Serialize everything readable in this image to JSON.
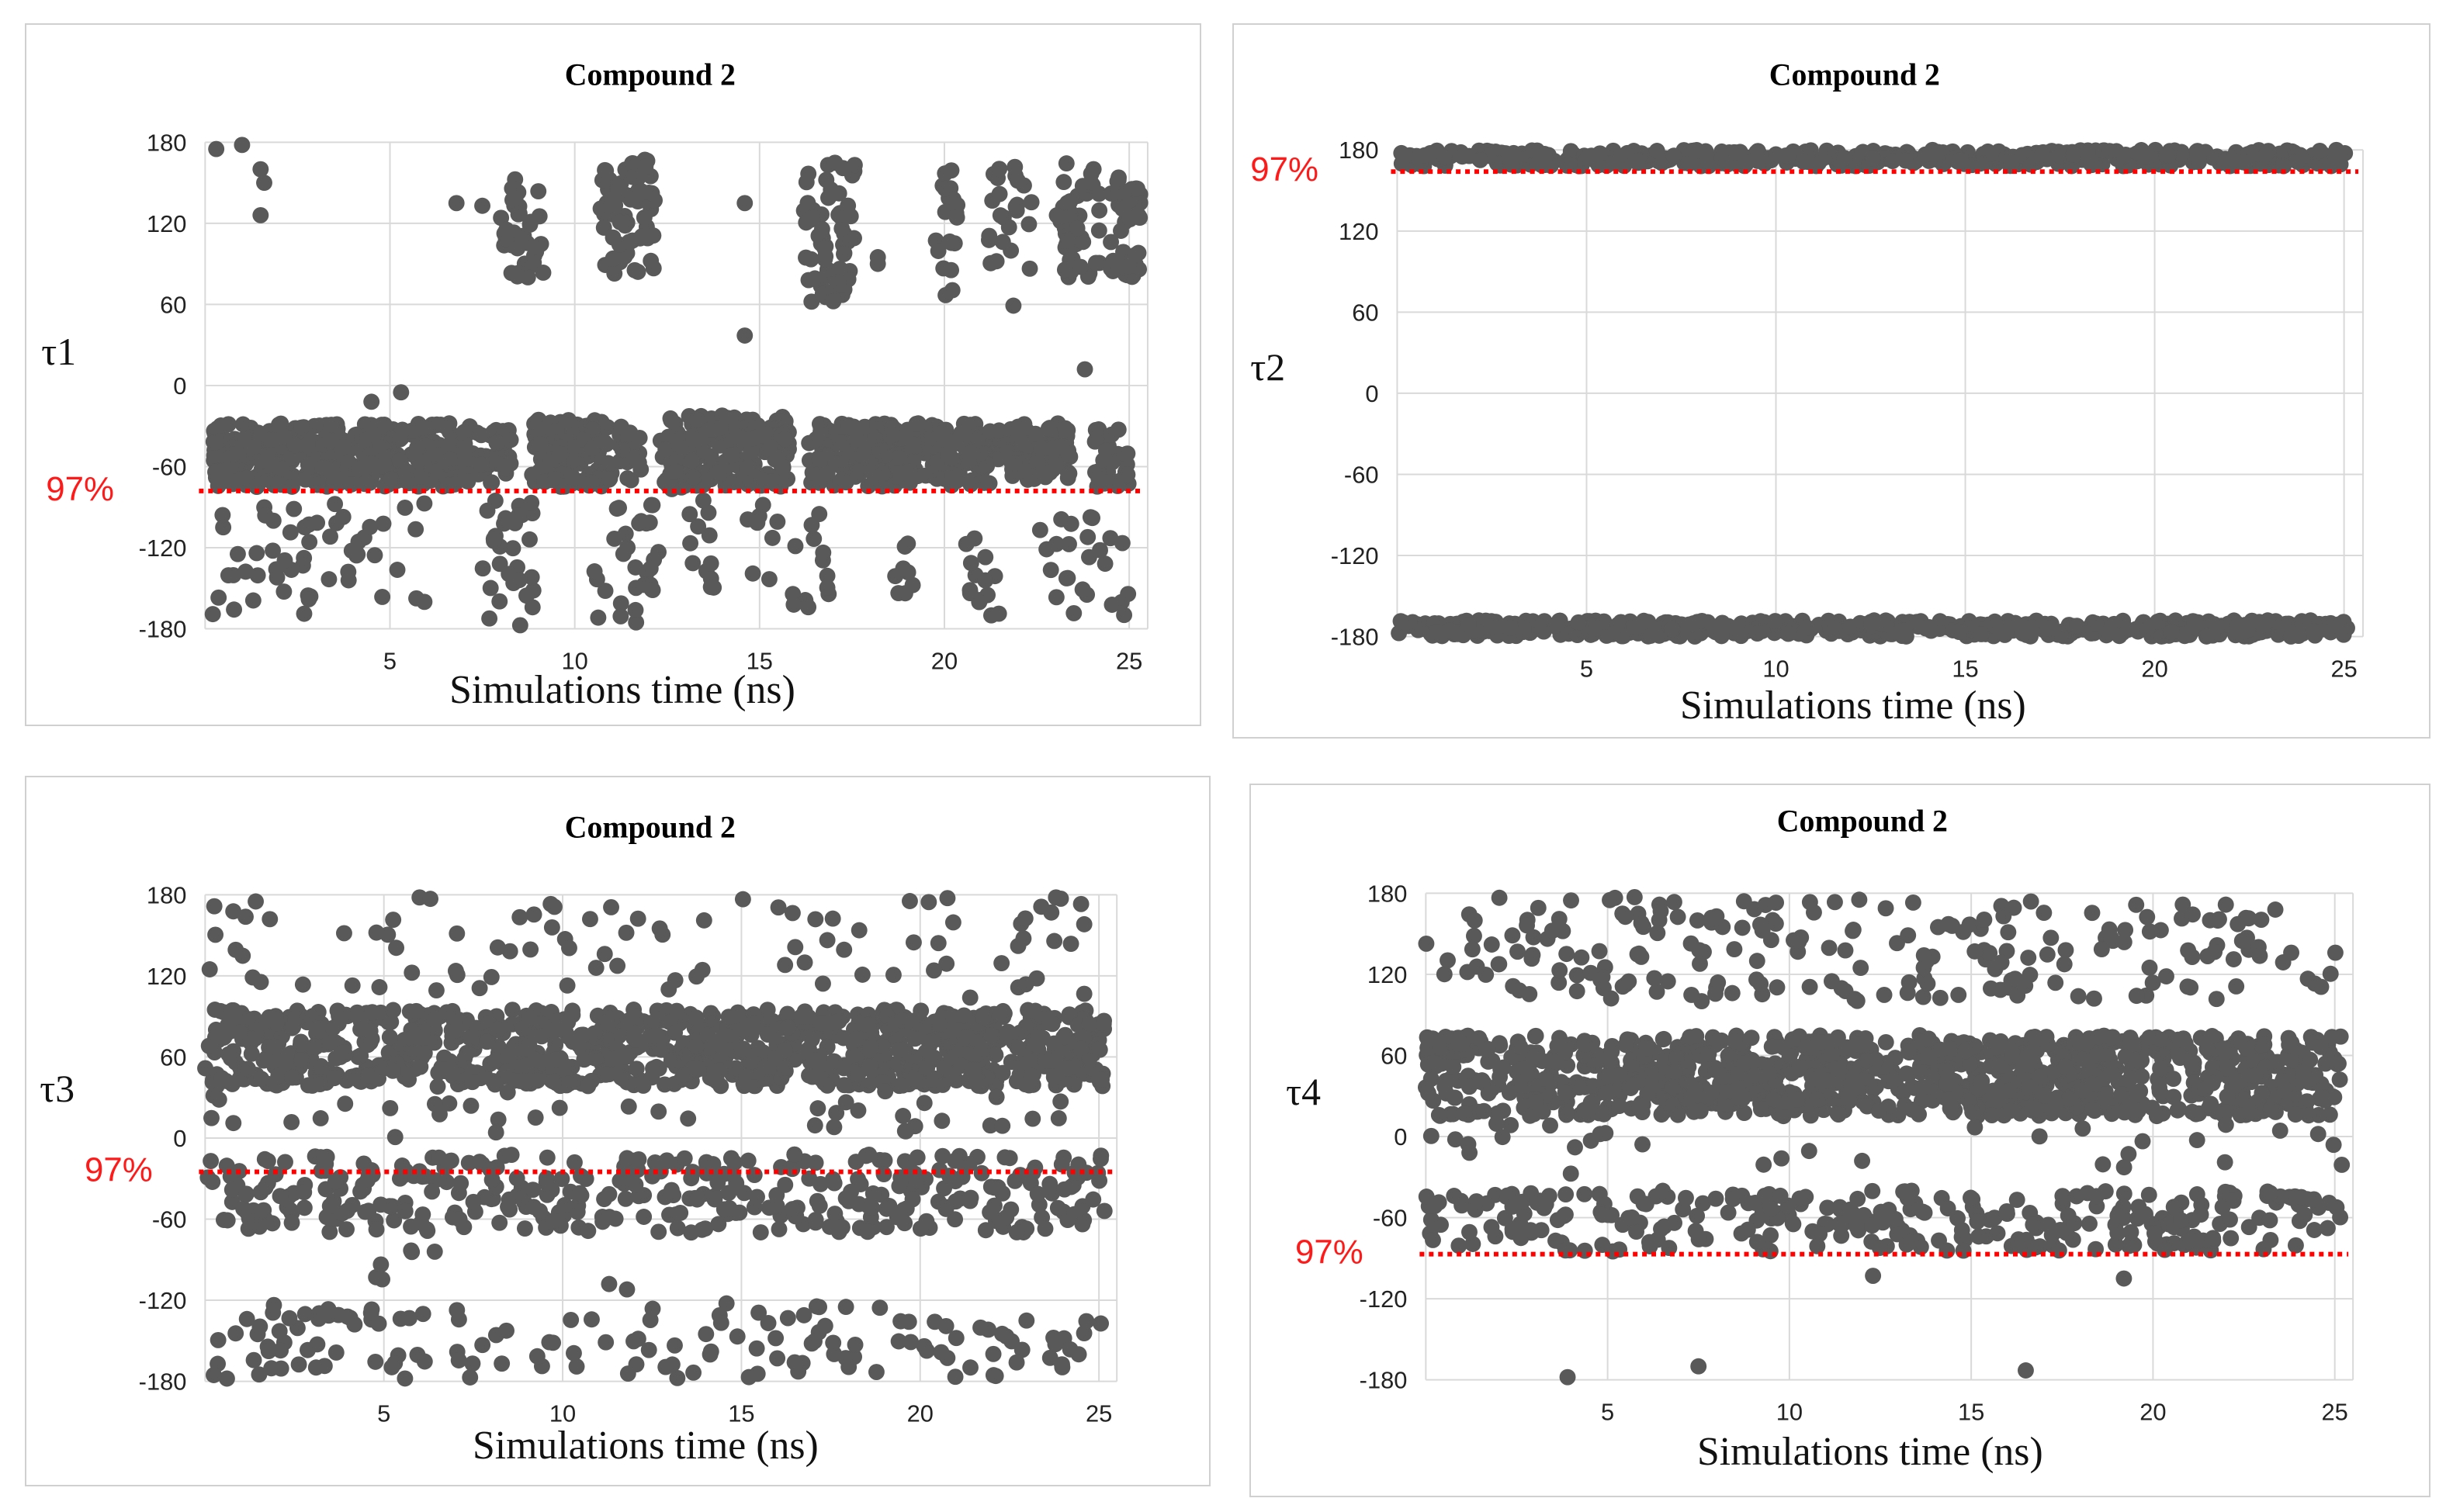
{
  "colors": {
    "marker": "#595959",
    "threshold": "#ff0000",
    "grid": "#d9d9d9"
  },
  "chart_data": [
    {
      "type": "scatter",
      "title": "Compound 2",
      "xlabel": "Simulations time (ns)",
      "ylabel": "τ1",
      "xlim": [
        0,
        25.5
      ],
      "ylim": [
        -180,
        180
      ],
      "xticks": [
        "5",
        "10",
        "15",
        "20",
        "25"
      ],
      "yticks": [
        "180",
        "120",
        "60",
        "0",
        "-60",
        "-120",
        "-180"
      ],
      "threshold": {
        "label": "97%",
        "y": -78
      },
      "series": [
        {
          "name": "τ1",
          "dense_bands": [
            {
              "x": [
                0.2,
                6.9
              ],
              "y": [
                -75,
                -28
              ],
              "count": 380
            },
            {
              "x": [
                7.0,
                8.3
              ],
              "y": [
                -72,
                -30
              ],
              "count": 50
            },
            {
              "x": [
                8.8,
                11.0
              ],
              "y": [
                -75,
                -25
              ],
              "count": 120
            },
            {
              "x": [
                11.2,
                11.8
              ],
              "y": [
                -72,
                -30
              ],
              "count": 20
            },
            {
              "x": [
                12.3,
                15.8
              ],
              "y": [
                -78,
                -22
              ],
              "count": 200
            },
            {
              "x": [
                16.3,
                21.5
              ],
              "y": [
                -75,
                -28
              ],
              "count": 260
            },
            {
              "x": [
                21.7,
                23.4
              ],
              "y": [
                -70,
                -28
              ],
              "count": 80
            },
            {
              "x": [
                24.0,
                25.0
              ],
              "y": [
                -75,
                -32
              ],
              "count": 35
            }
          ],
          "clusters": [
            {
              "x": [
                0.0,
                3.0
              ],
              "y": [
                -175,
                -80
              ],
              "count": 25
            },
            {
              "x": [
                2.0,
                6.0
              ],
              "y": [
                -170,
                -85
              ],
              "count": 30
            },
            {
              "x": [
                7.5,
                9.0
              ],
              "y": [
                -178,
                -85
              ],
              "count": 30
            },
            {
              "x": [
                10.5,
                12.3
              ],
              "y": [
                -178,
                -85
              ],
              "count": 30
            },
            {
              "x": [
                12.8,
                15.5
              ],
              "y": [
                -150,
                -85
              ],
              "count": 20
            },
            {
              "x": [
                15.8,
                17.0
              ],
              "y": [
                -170,
                -90
              ],
              "count": 15
            },
            {
              "x": [
                18.5,
                19.5
              ],
              "y": [
                -155,
                -115
              ],
              "count": 8
            },
            {
              "x": [
                20.5,
                21.5
              ],
              "y": [
                -172,
                -110
              ],
              "count": 15
            },
            {
              "x": [
                22.5,
                25.0
              ],
              "y": [
                -172,
                -80
              ],
              "count": 25
            },
            {
              "x": [
                8.0,
                9.2
              ],
              "y": [
                75,
                160
              ],
              "count": 35
            },
            {
              "x": [
                10.7,
                12.2
              ],
              "y": [
                80,
                172
              ],
              "count": 70
            },
            {
              "x": [
                16.2,
                17.6
              ],
              "y": [
                60,
                165
              ],
              "count": 65
            },
            {
              "x": [
                19.7,
                20.4
              ],
              "y": [
                62,
                168
              ],
              "count": 20
            },
            {
              "x": [
                21.2,
                22.4
              ],
              "y": [
                50,
                168
              ],
              "count": 25
            },
            {
              "x": [
                23.0,
                24.2
              ],
              "y": [
                80,
                165
              ],
              "count": 45
            },
            {
              "x": [
                24.5,
                25.3
              ],
              "y": [
                80,
                155
              ],
              "count": 40
            }
          ],
          "points": [
            {
              "x": 0.3,
              "y": 175
            },
            {
              "x": 1.0,
              "y": 178
            },
            {
              "x": 1.5,
              "y": 160
            },
            {
              "x": 1.6,
              "y": 150
            },
            {
              "x": 1.5,
              "y": 126
            },
            {
              "x": 6.8,
              "y": 135
            },
            {
              "x": 7.5,
              "y": 133
            },
            {
              "x": 14.6,
              "y": 135
            },
            {
              "x": 14.6,
              "y": 37
            },
            {
              "x": 18.2,
              "y": 90
            },
            {
              "x": 18.2,
              "y": 95
            },
            {
              "x": 23.8,
              "y": 12
            },
            {
              "x": 5.3,
              "y": -5
            },
            {
              "x": 4.5,
              "y": -12
            }
          ]
        }
      ]
    },
    {
      "type": "scatter",
      "title": "Compound 2",
      "xlabel": "Simulations time (ns)",
      "ylabel": "τ2",
      "xlim": [
        0,
        25.5
      ],
      "ylim": [
        -180,
        180
      ],
      "xticks": [
        "5",
        "10",
        "15",
        "20",
        "25"
      ],
      "yticks": [
        "180",
        "120",
        "60",
        "0",
        "-60",
        "-120",
        "-180"
      ],
      "threshold": {
        "label": "97%",
        "y": 164
      },
      "series": [
        {
          "name": "τ2",
          "dense_bands": [
            {
              "x": [
                0.0,
                25.1
              ],
              "y": [
                168,
                180
              ],
              "count": 500
            },
            {
              "x": [
                0.0,
                25.1
              ],
              "y": [
                -180,
                -168
              ],
              "count": 500
            }
          ],
          "clusters": [],
          "points": []
        }
      ]
    },
    {
      "type": "scatter",
      "title": "Compound 2",
      "xlabel": "Simulations time (ns)",
      "ylabel": "τ3",
      "xlim": [
        0,
        25.5
      ],
      "ylim": [
        -180,
        180
      ],
      "xticks": [
        "5",
        "10",
        "15",
        "20",
        "25"
      ],
      "yticks": [
        "180",
        "120",
        "60",
        "0",
        "-60",
        "-120",
        "-180"
      ],
      "threshold": {
        "label": "97%",
        "y": -25
      },
      "series": [
        {
          "name": "τ3",
          "dense_bands": [
            {
              "x": [
                0.0,
                25.2
              ],
              "y": [
                38,
                95
              ],
              "count": 1000
            },
            {
              "x": [
                0.0,
                25.2
              ],
              "y": [
                -70,
                -12
              ],
              "count": 380
            }
          ],
          "clusters": [
            {
              "x": [
                0.0,
                25.2
              ],
              "y": [
                100,
                178
              ],
              "count": 90
            },
            {
              "x": [
                0.0,
                25.2
              ],
              "y": [
                -178,
                -120
              ],
              "count": 150
            },
            {
              "x": [
                0.0,
                25.2
              ],
              "y": [
                0,
                35
              ],
              "count": 40
            },
            {
              "x": [
                4.5,
                6.5
              ],
              "y": [
                -115,
                -80
              ],
              "count": 6
            }
          ],
          "points": [
            {
              "x": 6.0,
              "y": 178
            },
            {
              "x": 6.3,
              "y": 177
            },
            {
              "x": 23.8,
              "y": 178
            },
            {
              "x": 11.3,
              "y": -108
            },
            {
              "x": 11.8,
              "y": -112
            }
          ]
        }
      ]
    },
    {
      "type": "scatter",
      "title": "Compound 2",
      "xlabel": "Simulations time (ns)",
      "ylabel": "τ4",
      "xlim": [
        0,
        25.5
      ],
      "ylim": [
        -180,
        180
      ],
      "xticks": [
        "5",
        "10",
        "15",
        "20",
        "25"
      ],
      "yticks": [
        "180",
        "120",
        "60",
        "0",
        "-60",
        "-120",
        "-180"
      ],
      "threshold": {
        "label": "97%",
        "y": -87
      },
      "series": [
        {
          "name": "τ4",
          "dense_bands": [
            {
              "x": [
                0.0,
                25.2
              ],
              "y": [
                15,
                75
              ],
              "count": 1000
            },
            {
              "x": [
                0.0,
                25.2
              ],
              "y": [
                -85,
                -40
              ],
              "count": 300
            }
          ],
          "clusters": [
            {
              "x": [
                0.0,
                25.2
              ],
              "y": [
                100,
                178
              ],
              "count": 220
            },
            {
              "x": [
                0.0,
                25.2
              ],
              "y": [
                -30,
                10
              ],
              "count": 30
            }
          ],
          "points": [
            {
              "x": 3.9,
              "y": -178
            },
            {
              "x": 7.5,
              "y": -170
            },
            {
              "x": 16.5,
              "y": -173
            },
            {
              "x": 1.2,
              "y": -12
            },
            {
              "x": 12.0,
              "y": -18
            },
            {
              "x": 19.2,
              "y": -105
            },
            {
              "x": 12.3,
              "y": -103
            }
          ]
        }
      ]
    }
  ]
}
